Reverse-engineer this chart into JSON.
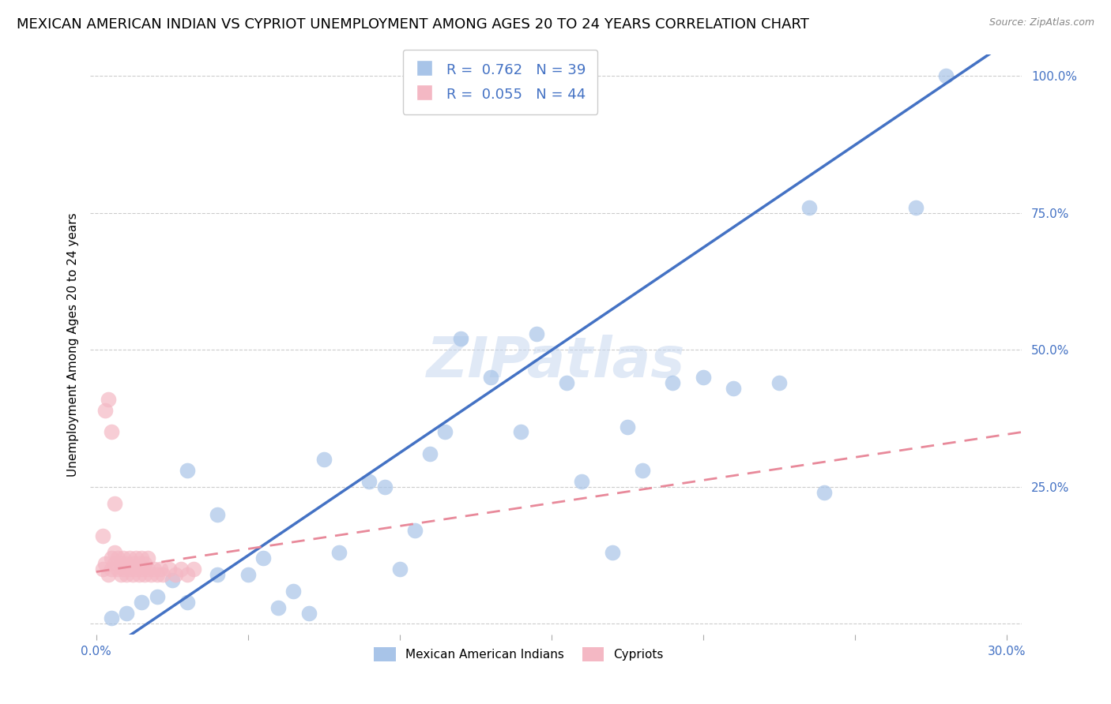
{
  "title": "MEXICAN AMERICAN INDIAN VS CYPRIOT UNEMPLOYMENT AMONG AGES 20 TO 24 YEARS CORRELATION CHART",
  "source": "Source: ZipAtlas.com",
  "ylabel": "Unemployment Among Ages 20 to 24 years",
  "xlim": [
    -0.002,
    0.305
  ],
  "ylim": [
    -0.02,
    1.04
  ],
  "xticks": [
    0.0,
    0.05,
    0.1,
    0.15,
    0.2,
    0.25,
    0.3
  ],
  "xticklabels": [
    "0.0%",
    "",
    "",
    "",
    "",
    "",
    "30.0%"
  ],
  "yticks": [
    0.0,
    0.25,
    0.5,
    0.75,
    1.0
  ],
  "yticklabels": [
    "",
    "25.0%",
    "50.0%",
    "75.0%",
    "100.0%"
  ],
  "legend_label1": "Mexican American Indians",
  "legend_label2": "Cypriots",
  "watermark": "ZIPatlas",
  "blue_color": "#a8c4e8",
  "pink_color": "#f4b8c4",
  "blue_line_color": "#4472c4",
  "pink_line_color": "#e8899a",
  "blue_scatter_x": [
    0.005,
    0.01,
    0.015,
    0.02,
    0.025,
    0.03,
    0.03,
    0.04,
    0.04,
    0.05,
    0.055,
    0.06,
    0.065,
    0.07,
    0.075,
    0.08,
    0.09,
    0.095,
    0.1,
    0.105,
    0.11,
    0.115,
    0.12,
    0.13,
    0.14,
    0.145,
    0.155,
    0.16,
    0.17,
    0.175,
    0.18,
    0.19,
    0.2,
    0.21,
    0.225,
    0.235,
    0.24,
    0.27,
    0.28
  ],
  "blue_scatter_y": [
    0.01,
    0.02,
    0.04,
    0.05,
    0.08,
    0.04,
    0.28,
    0.09,
    0.2,
    0.09,
    0.12,
    0.03,
    0.06,
    0.02,
    0.3,
    0.13,
    0.26,
    0.25,
    0.1,
    0.17,
    0.31,
    0.35,
    0.52,
    0.45,
    0.35,
    0.53,
    0.44,
    0.26,
    0.13,
    0.36,
    0.28,
    0.44,
    0.45,
    0.43,
    0.44,
    0.76,
    0.24,
    0.76,
    1.0
  ],
  "pink_scatter_x": [
    0.002,
    0.003,
    0.004,
    0.005,
    0.005,
    0.006,
    0.006,
    0.007,
    0.007,
    0.008,
    0.008,
    0.009,
    0.009,
    0.01,
    0.01,
    0.011,
    0.011,
    0.012,
    0.012,
    0.013,
    0.013,
    0.014,
    0.014,
    0.015,
    0.015,
    0.016,
    0.016,
    0.017,
    0.017,
    0.018,
    0.019,
    0.02,
    0.021,
    0.022,
    0.024,
    0.026,
    0.028,
    0.03,
    0.032,
    0.004,
    0.005,
    0.006,
    0.002,
    0.003
  ],
  "pink_scatter_y": [
    0.1,
    0.11,
    0.09,
    0.1,
    0.12,
    0.11,
    0.13,
    0.1,
    0.12,
    0.09,
    0.11,
    0.1,
    0.12,
    0.09,
    0.11,
    0.1,
    0.12,
    0.09,
    0.11,
    0.1,
    0.12,
    0.09,
    0.11,
    0.1,
    0.12,
    0.09,
    0.11,
    0.1,
    0.12,
    0.09,
    0.1,
    0.09,
    0.1,
    0.09,
    0.1,
    0.09,
    0.1,
    0.09,
    0.1,
    0.41,
    0.35,
    0.22,
    0.16,
    0.39
  ],
  "blue_line_x": [
    -0.002,
    0.305
  ],
  "blue_line_y": [
    -0.07,
    1.08
  ],
  "pink_line_x": [
    0.0,
    0.305
  ],
  "pink_line_y": [
    0.095,
    0.35
  ],
  "background_color": "#ffffff",
  "grid_color": "#cccccc",
  "title_fontsize": 13,
  "axis_label_fontsize": 11,
  "tick_fontsize": 11,
  "legend_fontsize": 13
}
